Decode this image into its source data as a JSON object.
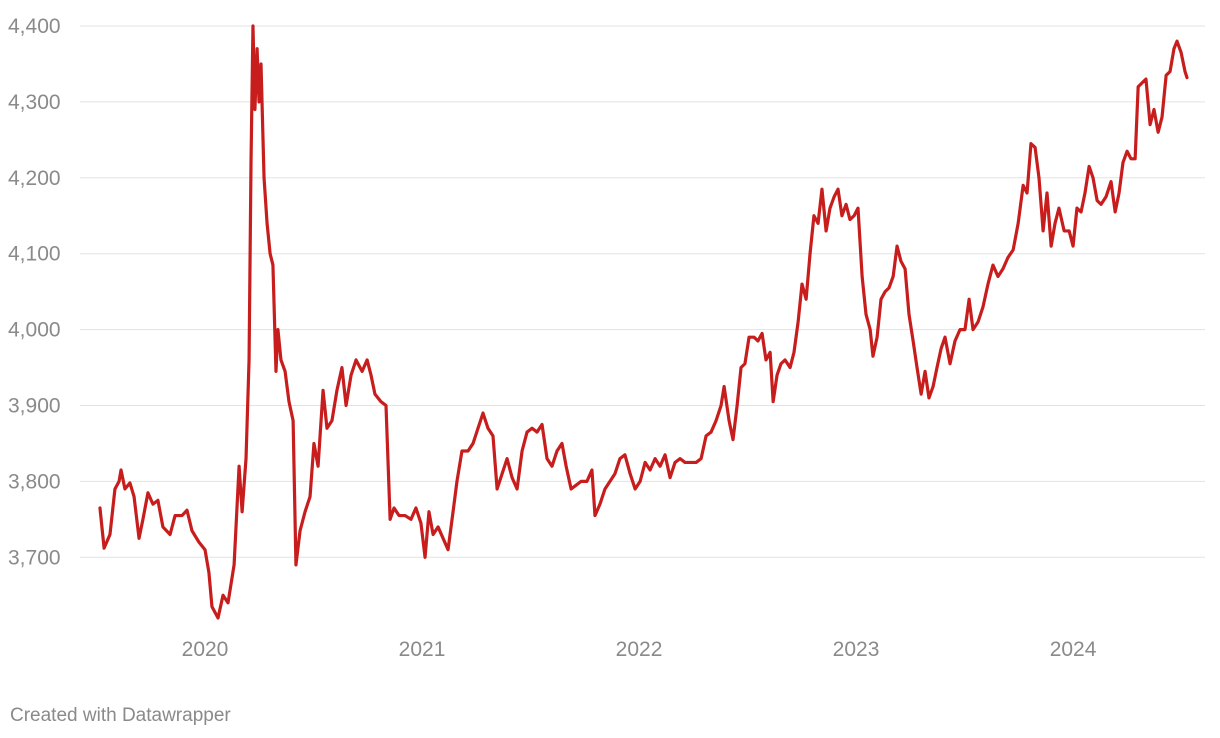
{
  "chart_data": {
    "type": "line",
    "x": [
      2019.516,
      2019.535,
      2019.562,
      2019.585,
      2019.604,
      2019.613,
      2019.631,
      2019.654,
      2019.673,
      2019.696,
      2019.714,
      2019.737,
      2019.76,
      2019.783,
      2019.806,
      2019.839,
      2019.862,
      2019.894,
      2019.917,
      2019.94,
      2019.972,
      2020.0,
      2020.018,
      2020.032,
      2020.06,
      2020.083,
      2020.106,
      2020.134,
      2020.157,
      2020.171,
      2020.189,
      2020.203,
      2020.212,
      2020.221,
      2020.23,
      2020.24,
      2020.249,
      2020.258,
      2020.272,
      2020.286,
      2020.3,
      2020.313,
      2020.327,
      2020.336,
      2020.35,
      2020.369,
      2020.387,
      2020.406,
      2020.419,
      2020.438,
      2020.461,
      2020.484,
      2020.502,
      2020.521,
      2020.544,
      2020.562,
      2020.585,
      2020.608,
      2020.631,
      2020.65,
      2020.673,
      2020.696,
      2020.724,
      2020.747,
      2020.765,
      2020.783,
      2020.811,
      2020.834,
      2020.853,
      2020.871,
      2020.894,
      2020.922,
      2020.949,
      2020.972,
      2020.995,
      2021.014,
      2021.032,
      2021.051,
      2021.074,
      2021.097,
      2021.12,
      2021.143,
      2021.161,
      2021.184,
      2021.212,
      2021.235,
      2021.258,
      2021.281,
      2021.304,
      2021.327,
      2021.346,
      2021.369,
      2021.392,
      2021.415,
      2021.438,
      2021.461,
      2021.484,
      2021.507,
      2021.53,
      2021.553,
      2021.576,
      2021.599,
      2021.622,
      2021.645,
      2021.664,
      2021.687,
      2021.71,
      2021.733,
      2021.76,
      2021.783,
      2021.797,
      2021.82,
      2021.843,
      2021.866,
      2021.889,
      2021.912,
      2021.935,
      2021.959,
      2021.982,
      2022.005,
      2022.028,
      2022.051,
      2022.074,
      2022.097,
      2022.12,
      2022.143,
      2022.166,
      2022.189,
      2022.212,
      2022.235,
      2022.263,
      2022.286,
      2022.309,
      2022.332,
      2022.355,
      2022.378,
      2022.392,
      2022.415,
      2022.433,
      2022.452,
      2022.47,
      2022.488,
      2022.507,
      2022.53,
      2022.548,
      2022.567,
      2022.585,
      2022.604,
      2022.618,
      2022.636,
      2022.654,
      2022.673,
      2022.696,
      2022.714,
      2022.733,
      2022.751,
      2022.77,
      2022.788,
      2022.806,
      2022.825,
      2022.843,
      2022.862,
      2022.88,
      2022.899,
      2022.917,
      2022.935,
      2022.954,
      2022.972,
      2022.991,
      2023.009,
      2023.028,
      2023.046,
      2023.065,
      2023.078,
      2023.097,
      2023.115,
      2023.134,
      2023.152,
      2023.171,
      2023.189,
      2023.207,
      2023.226,
      2023.244,
      2023.263,
      2023.281,
      2023.3,
      2023.318,
      2023.336,
      2023.355,
      2023.373,
      2023.392,
      2023.41,
      2023.433,
      2023.456,
      2023.479,
      2023.502,
      2023.521,
      2023.539,
      2023.562,
      2023.585,
      2023.608,
      2023.631,
      2023.654,
      2023.677,
      2023.7,
      2023.724,
      2023.747,
      2023.77,
      2023.788,
      2023.806,
      2023.825,
      2023.843,
      2023.862,
      2023.88,
      2023.899,
      2023.917,
      2023.935,
      2023.959,
      2023.982,
      2024.0,
      2024.018,
      2024.037,
      2024.055,
      2024.074,
      2024.092,
      2024.111,
      2024.129,
      2024.152,
      2024.175,
      2024.194,
      2024.212,
      2024.23,
      2024.249,
      2024.267,
      2024.286,
      2024.3,
      2024.318,
      2024.336,
      2024.355,
      2024.373,
      2024.392,
      2024.41,
      2024.429,
      2024.447,
      2024.465,
      2024.479,
      2024.498,
      2024.516,
      2024.525
    ],
    "series": [
      {
        "color": "#c71e1d",
        "values": [
          3765,
          3712,
          3730,
          3790,
          3800,
          3815,
          3790,
          3798,
          3780,
          3725,
          3750,
          3785,
          3770,
          3775,
          3740,
          3730,
          3755,
          3755,
          3762,
          3735,
          3720,
          3710,
          3680,
          3635,
          3620,
          3650,
          3640,
          3690,
          3820,
          3760,
          3830,
          3960,
          4220,
          4400,
          4290,
          4370,
          4300,
          4350,
          4200,
          4140,
          4100,
          4085,
          3945,
          4000,
          3960,
          3945,
          3905,
          3880,
          3690,
          3735,
          3760,
          3780,
          3850,
          3820,
          3920,
          3870,
          3880,
          3920,
          3950,
          3900,
          3940,
          3960,
          3945,
          3960,
          3940,
          3915,
          3905,
          3900,
          3750,
          3765,
          3755,
          3755,
          3750,
          3765,
          3745,
          3700,
          3760,
          3730,
          3740,
          3725,
          3710,
          3760,
          3800,
          3840,
          3840,
          3850,
          3870,
          3890,
          3870,
          3860,
          3790,
          3810,
          3830,
          3805,
          3790,
          3840,
          3865,
          3870,
          3865,
          3875,
          3830,
          3820,
          3840,
          3850,
          3820,
          3790,
          3795,
          3800,
          3800,
          3815,
          3755,
          3770,
          3790,
          3800,
          3810,
          3830,
          3835,
          3810,
          3790,
          3800,
          3825,
          3815,
          3830,
          3820,
          3835,
          3805,
          3825,
          3830,
          3825,
          3825,
          3825,
          3830,
          3860,
          3865,
          3880,
          3900,
          3925,
          3880,
          3855,
          3900,
          3950,
          3955,
          3990,
          3990,
          3985,
          3995,
          3960,
          3970,
          3905,
          3940,
          3955,
          3960,
          3950,
          3970,
          4010,
          4060,
          4040,
          4100,
          4150,
          4140,
          4185,
          4130,
          4160,
          4175,
          4185,
          4150,
          4165,
          4145,
          4150,
          4160,
          4070,
          4020,
          4000,
          3965,
          3990,
          4040,
          4050,
          4055,
          4070,
          4110,
          4090,
          4080,
          4020,
          3985,
          3950,
          3915,
          3945,
          3910,
          3925,
          3950,
          3975,
          3990,
          3955,
          3985,
          4000,
          4000,
          4040,
          4000,
          4010,
          4030,
          4060,
          4085,
          4070,
          4080,
          4095,
          4105,
          4140,
          4190,
          4180,
          4245,
          4240,
          4200,
          4130,
          4180,
          4110,
          4140,
          4160,
          4130,
          4130,
          4110,
          4160,
          4155,
          4180,
          4215,
          4200,
          4170,
          4165,
          4175,
          4195,
          4155,
          4180,
          4220,
          4235,
          4225,
          4225,
          4320,
          4325,
          4330,
          4270,
          4290,
          4260,
          4280,
          4335,
          4340,
          4370,
          4380,
          4365,
          4340,
          4332
        ]
      }
    ],
    "xlim": [
      2019.447,
      2024.608
    ],
    "xticks": [
      2020,
      2021,
      2022,
      2023,
      2024
    ],
    "ylim": [
      3610,
      4410
    ],
    "yticks": [
      {
        "value": 3700,
        "label": "3,700"
      },
      {
        "value": 3800,
        "label": "3,800"
      },
      {
        "value": 3900,
        "label": "3,900"
      },
      {
        "value": 4000,
        "label": "4,000"
      },
      {
        "value": 4100,
        "label": "4,100"
      },
      {
        "value": 4200,
        "label": "4,200"
      },
      {
        "value": 4300,
        "label": "4,300"
      },
      {
        "value": 4400,
        "label": "4,400"
      }
    ],
    "grid": true,
    "footer": "Created with Datawrapper"
  }
}
